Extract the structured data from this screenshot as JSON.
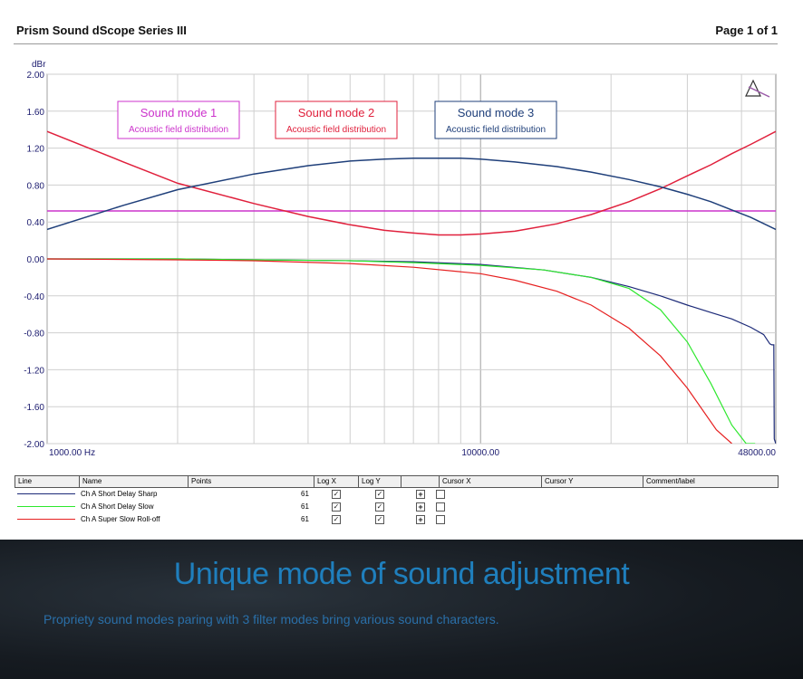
{
  "header": {
    "title": "Prism Sound dScope Series III",
    "page": "Page 1 of 1"
  },
  "chart_data": {
    "type": "line",
    "ylabel": "dBr",
    "ylim": [
      -2.0,
      2.0
    ],
    "xlim": [
      1000,
      48000
    ],
    "x_scale": "log",
    "grid": true,
    "y_ticks": [
      "2.00",
      "1.60",
      "1.20",
      "0.80",
      "0.40",
      "0.00",
      "-0.40",
      "-0.80",
      "-1.20",
      "-1.60",
      "-2.00"
    ],
    "x_tick_labels": [
      {
        "x": 1000,
        "label": "1000.00 Hz"
      },
      {
        "x": 10000,
        "label": "10000.00"
      },
      {
        "x": 48000,
        "label": "48000.00"
      }
    ],
    "series": [
      {
        "name": "Ch A Short Delay Sharp",
        "color": "#1c2a78",
        "x": [
          1000,
          2000,
          3000,
          5000,
          7000,
          10000,
          14000,
          18000,
          22000,
          26000,
          30000,
          34000,
          38000,
          42000,
          45000,
          46500,
          47000,
          47500,
          47600,
          48000
        ],
        "y": [
          0.0,
          0.0,
          -0.01,
          -0.02,
          -0.03,
          -0.06,
          -0.12,
          -0.2,
          -0.3,
          -0.4,
          -0.5,
          -0.58,
          -0.65,
          -0.74,
          -0.82,
          -0.92,
          -0.93,
          -0.93,
          -1.95,
          -2.0
        ]
      },
      {
        "name": "Ch A Short Delay Slow",
        "color": "#2ee82e",
        "x": [
          1000,
          2000,
          3000,
          5000,
          7000,
          10000,
          14000,
          18000,
          22000,
          26000,
          30000,
          34000,
          38000,
          41000,
          43000
        ],
        "y": [
          0.0,
          0.0,
          -0.01,
          -0.02,
          -0.04,
          -0.07,
          -0.12,
          -0.2,
          -0.32,
          -0.55,
          -0.9,
          -1.35,
          -1.8,
          -2.0,
          -2.0
        ]
      },
      {
        "name": "Ch A Super Slow Roll-off",
        "color": "#e62020",
        "x": [
          1000,
          2000,
          3000,
          5000,
          7000,
          10000,
          12000,
          15000,
          18000,
          22000,
          26000,
          30000,
          35000,
          38000
        ],
        "y": [
          0.0,
          -0.01,
          -0.02,
          -0.05,
          -0.09,
          -0.16,
          -0.23,
          -0.35,
          -0.5,
          -0.75,
          -1.05,
          -1.4,
          -1.85,
          -2.0
        ]
      }
    ],
    "overlays": [
      {
        "label": "Sound mode 1",
        "sub": "Acoustic field distribution",
        "color": "#cc33cc",
        "x": [
          1000,
          48000
        ],
        "y": [
          0.52,
          0.52
        ]
      },
      {
        "label": "Sound mode 2",
        "sub": "Acoustic field distribution",
        "color": "#e0203c",
        "x": [
          1000,
          1500,
          2000,
          3000,
          4000,
          5000,
          6000,
          7000,
          8000,
          9000,
          10000,
          12000,
          15000,
          18000,
          22000,
          26000,
          30000,
          34000,
          38000,
          42000,
          48000
        ],
        "y": [
          1.38,
          1.05,
          0.82,
          0.6,
          0.46,
          0.37,
          0.31,
          0.28,
          0.26,
          0.26,
          0.27,
          0.3,
          0.38,
          0.48,
          0.62,
          0.76,
          0.9,
          1.02,
          1.14,
          1.24,
          1.38
        ]
      },
      {
        "label": "Sound mode 3",
        "sub": "Acoustic field distribution",
        "color": "#1f3f7a",
        "x": [
          1000,
          1500,
          2000,
          3000,
          4000,
          5000,
          6000,
          7000,
          8000,
          9000,
          10000,
          12000,
          15000,
          18000,
          22000,
          26000,
          30000,
          34000,
          38000,
          42000,
          48000
        ],
        "y": [
          0.32,
          0.58,
          0.75,
          0.92,
          1.01,
          1.06,
          1.08,
          1.09,
          1.09,
          1.09,
          1.08,
          1.05,
          1.0,
          0.94,
          0.86,
          0.78,
          0.7,
          0.62,
          0.53,
          0.45,
          0.32
        ]
      }
    ]
  },
  "table": {
    "columns": [
      "Line",
      "Name",
      "Points",
      "Log X",
      "Log Y",
      "",
      "Cursor X",
      "Cursor Y",
      "Comment/label"
    ],
    "rows": [
      {
        "name": "Ch A Short Delay Sharp",
        "points": "61",
        "color": "#1c2a78"
      },
      {
        "name": "Ch A Short Delay Slow",
        "points": "61",
        "color": "#2ee82e"
      },
      {
        "name": "Ch A Super Slow Roll-off",
        "points": "61",
        "color": "#e62020"
      }
    ],
    "check_glyph": "✓",
    "plus_glyph": "+"
  },
  "footer": {
    "headline": "Unique mode of sound adjustment",
    "subline": "Propriety sound modes paring with 3 filter modes bring various sound characters."
  }
}
